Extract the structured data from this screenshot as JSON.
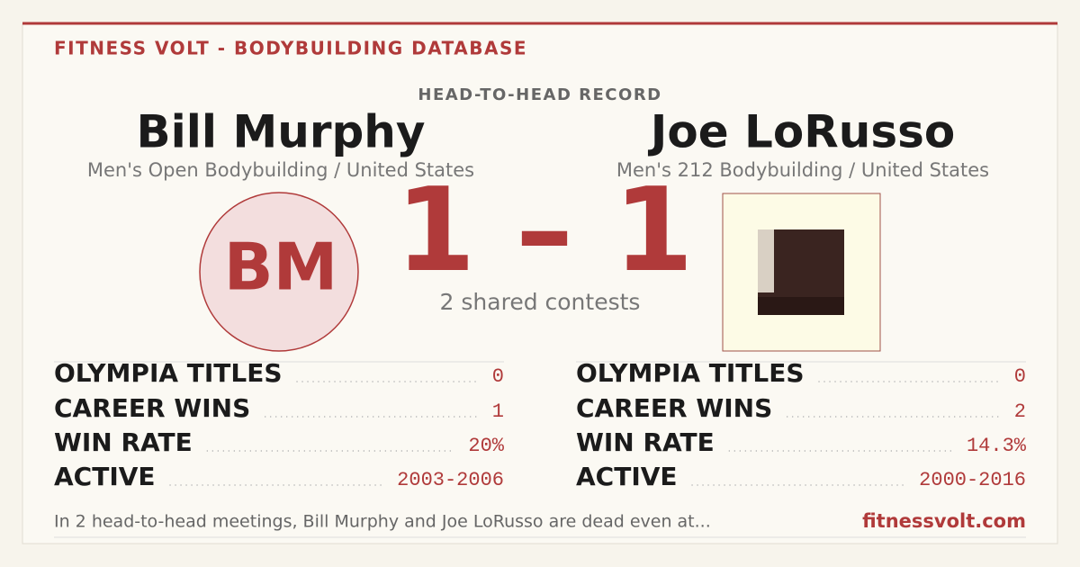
{
  "header": {
    "brand": "FITNESS VOLT - BODYBUILDING DATABASE",
    "section_label": "HEAD-TO-HEAD RECORD"
  },
  "score": {
    "text": "1 – 1",
    "shared_contests": "2 shared contests"
  },
  "athletes": [
    {
      "name": "Bill Murphy",
      "division": "Men's Open Bodybuilding / United States",
      "initials": "BM",
      "stats": [
        {
          "label": "OLYMPIA TITLES",
          "value": "0"
        },
        {
          "label": "CAREER WINS",
          "value": "1"
        },
        {
          "label": "WIN RATE",
          "value": "20%"
        },
        {
          "label": "ACTIVE",
          "value": "2003-2006"
        }
      ]
    },
    {
      "name": "Joe LoRusso",
      "division": "Men's 212 Bodybuilding / United States",
      "stats": [
        {
          "label": "OLYMPIA TITLES",
          "value": "0"
        },
        {
          "label": "CAREER WINS",
          "value": "2"
        },
        {
          "label": "WIN RATE",
          "value": "14.3%"
        },
        {
          "label": "ACTIVE",
          "value": "2000-2016"
        }
      ]
    }
  ],
  "footer": {
    "summary": "In 2 head-to-head meetings, Bill Murphy and Joe LoRusso are dead even at...",
    "site": "fitnessvolt.com"
  }
}
